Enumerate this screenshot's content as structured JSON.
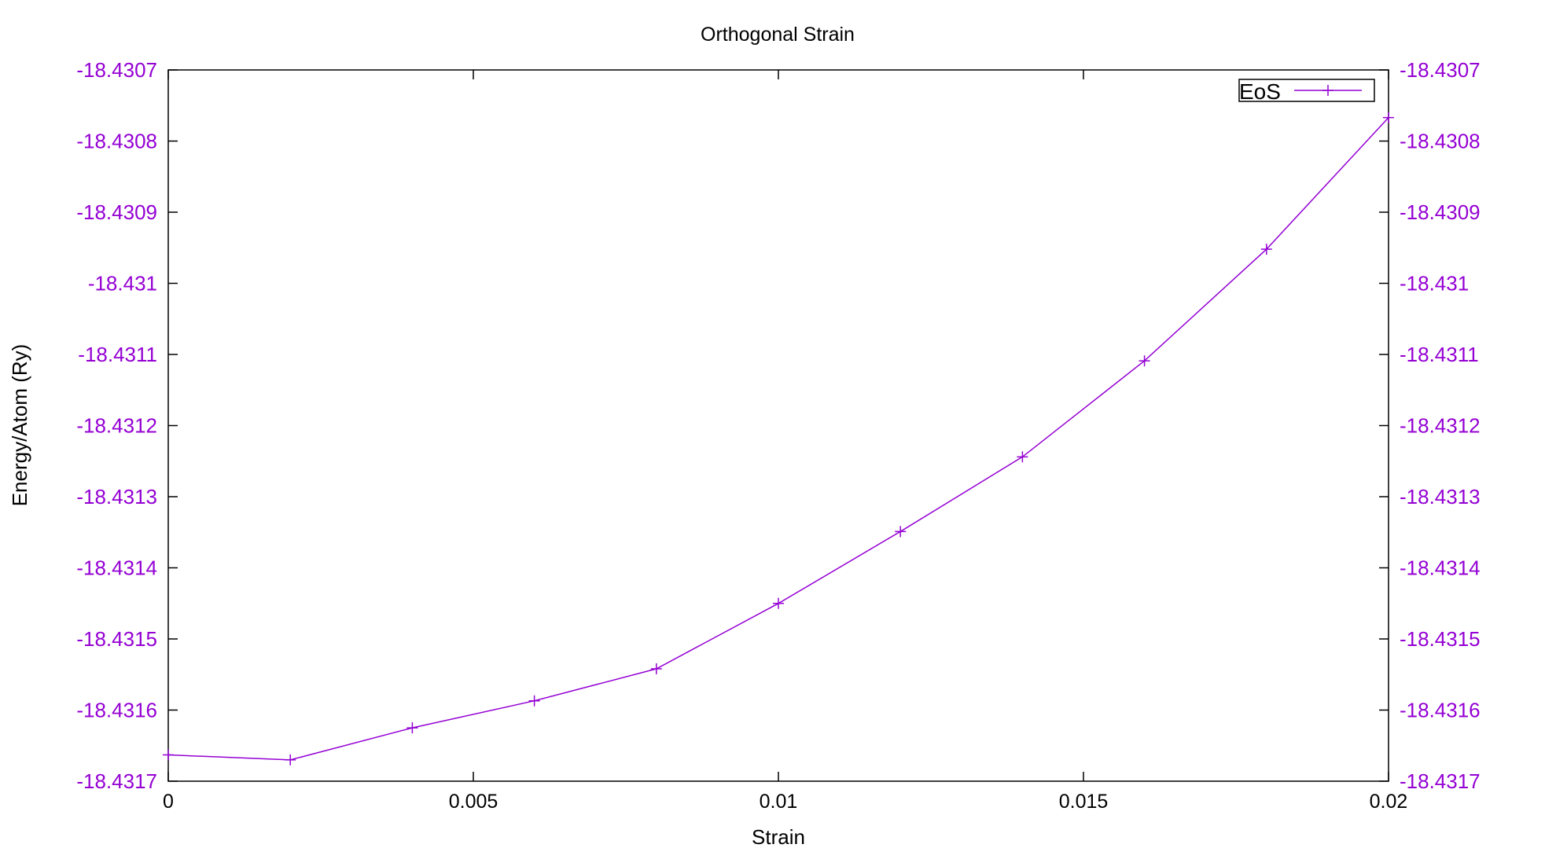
{
  "chart_data": {
    "type": "line",
    "title": "Orthogonal Strain",
    "xlabel": "Strain",
    "ylabel": "Energy/Atom (Ry)",
    "xlim": [
      0,
      0.02
    ],
    "ylim": [
      -18.4317,
      -18.4307
    ],
    "x_ticks": [
      "0",
      "0.005",
      "0.01",
      "0.015",
      "0.02"
    ],
    "y_ticks_left": [
      "-18.4307",
      "-18.4308",
      "-18.4309",
      "-18.431",
      "-18.4311",
      "-18.4312",
      "-18.4313",
      "-18.4314",
      "-18.4315",
      "-18.4316",
      "-18.4317"
    ],
    "y_ticks_right": [
      "-18.4307",
      "-18.4308",
      "-18.4309",
      "-18.431",
      "-18.4311",
      "-18.4312",
      "-18.4313",
      "-18.4314",
      "-18.4315",
      "-18.4316",
      "-18.4317"
    ],
    "legend_position": "top-right",
    "grid": false,
    "series": [
      {
        "name": "EoS",
        "color": "#9400d3",
        "marker": "plus",
        "x": [
          0,
          0.002,
          0.004,
          0.006,
          0.008,
          0.01,
          0.012,
          0.014,
          0.016,
          0.018,
          0.02
        ],
        "y": [
          -18.431663,
          -18.43167,
          -18.431625,
          -18.431587,
          -18.431542,
          -18.43145,
          -18.431349,
          -18.431244,
          -18.431109,
          -18.430952,
          -18.430767
        ]
      }
    ]
  }
}
